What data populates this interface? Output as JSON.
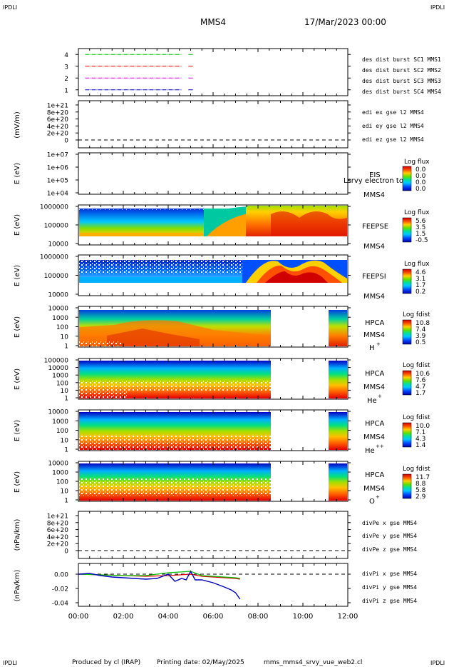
{
  "header": {
    "corner_tl": "IPDLI",
    "corner_tr": "IPDLI",
    "corner_bl": "IPDLI",
    "corner_br": "IPDLI",
    "spacecraft": "MMS4",
    "date": "17/Mar/2023 00:00"
  },
  "footer": {
    "produced": "Produced by cl (IRAP)",
    "printing": "Printing date: 02/May/2025",
    "script": "mms_mms4_srvy_vue_web2.cl"
  },
  "time_axis": {
    "ticks": [
      "00:00",
      "02:00",
      "04:00",
      "06:00",
      "08:00",
      "10:00",
      "12:00"
    ],
    "range_hours": [
      0,
      12
    ]
  },
  "colors": {
    "red": "#e00000",
    "green": "#00c000",
    "blue": "#0000c0",
    "magenta": "#d000d0"
  },
  "chart_data": [
    {
      "id": "burst",
      "type": "line",
      "ylim": [
        0.5,
        4.5
      ],
      "yticks": [
        "1",
        "2",
        "3",
        "4"
      ],
      "ylabel": "",
      "series": [
        {
          "name": "des dist burst SC1 MMS1",
          "level": 1,
          "color": "#0000c0",
          "x": [
            0.3,
            4.6,
            4.9,
            5.1
          ]
        },
        {
          "name": "des dist burst SC2 MMS2",
          "level": 2,
          "color": "#d000d0",
          "x": [
            0.3,
            4.6,
            4.9,
            5.1
          ]
        },
        {
          "name": "des dist burst SC3 MMS3",
          "level": 3,
          "color": "#e00000",
          "x": [
            0.3,
            4.6,
            4.9,
            5.1
          ]
        },
        {
          "name": "des dist burst SC4 MMS4",
          "level": 4,
          "color": "#00c000",
          "x": [
            0.3,
            4.6,
            4.9,
            5.1
          ]
        }
      ]
    },
    {
      "id": "edi",
      "type": "line",
      "ylabel": "(mV/m)",
      "yticks": [
        "0",
        "2e+20",
        "4e+20",
        "6e+20",
        "8e+20",
        "1e+21"
      ],
      "zero_dashed": true,
      "legend": [
        {
          "text": "edi ex gse l2 MMS4",
          "color": "#e00000"
        },
        {
          "text": "edi ey gse l2 MMS4",
          "color": "#00c000"
        },
        {
          "text": "edi ez gse l2 MMS4",
          "color": "#0000c0"
        }
      ]
    },
    {
      "id": "eis",
      "type": "heatmap",
      "ylabel": "E (eV)",
      "yticks": [
        "1e+04",
        "1e+05",
        "1e+06",
        "1e+07"
      ],
      "instrument": "EIS",
      "overlay": "Lsrvy electron to",
      "sc": "MMS4",
      "colorbar_title": "Log flux",
      "colorbar_ticks": [
        "0.0",
        "0.0",
        "0.0",
        "0.0"
      ]
    },
    {
      "id": "feepse",
      "type": "heatmap",
      "ylabel": "E (eV)",
      "yticks": [
        "10000",
        "100000",
        "1000000"
      ],
      "instrument": "FEEPSE",
      "sc": "MMS4",
      "colorbar_title": "Log flux",
      "colorbar_ticks": [
        "5.6",
        "3.5",
        "1.5",
        "-0.5"
      ]
    },
    {
      "id": "feepsi",
      "type": "heatmap",
      "ylabel": "E (eV)",
      "yticks": [
        "10000",
        "100000",
        "1000000"
      ],
      "instrument": "FEEPSI",
      "sc": "MMS4",
      "colorbar_title": "Log flux",
      "colorbar_ticks": [
        "4.6",
        "3.1",
        "1.7",
        "0.2"
      ]
    },
    {
      "id": "hpca_h",
      "type": "heatmap",
      "ylabel": "E (eV)",
      "yticks": [
        "1",
        "10",
        "100",
        "1000",
        "10000"
      ],
      "instrument": "HPCA",
      "sc": "MMS4",
      "species": "H",
      "species_sup": "+",
      "colorbar_title": "Log fdist",
      "colorbar_ticks": [
        "10.8",
        "7.4",
        "3.9",
        "0.5"
      ]
    },
    {
      "id": "hpca_he",
      "type": "heatmap",
      "ylabel": "E (eV)",
      "yticks": [
        "1",
        "10",
        "100",
        "1000",
        "10000",
        "100000"
      ],
      "instrument": "HPCA",
      "sc": "MMS4",
      "species": "He",
      "species_sup": "+",
      "colorbar_title": "Log fdist",
      "colorbar_ticks": [
        "10.6",
        "7.6",
        "4.7",
        "1.7"
      ]
    },
    {
      "id": "hpca_hepp",
      "type": "heatmap",
      "ylabel": "E (eV)",
      "yticks": [
        "1",
        "10",
        "100",
        "1000",
        "10000"
      ],
      "instrument": "HPCA",
      "sc": "MMS4",
      "species": "He",
      "species_sup": "++",
      "colorbar_title": "Log fdist",
      "colorbar_ticks": [
        "10.0",
        "7.1",
        "4.3",
        "1.4"
      ]
    },
    {
      "id": "hpca_o",
      "type": "heatmap",
      "ylabel": "E (eV)",
      "yticks": [
        "1",
        "10",
        "100",
        "1000",
        "10000"
      ],
      "instrument": "HPCA",
      "sc": "MMS4",
      "species": "O",
      "species_sup": "+",
      "colorbar_title": "Log fdist",
      "colorbar_ticks": [
        "11.7",
        "8.8",
        "5.8",
        "2.9"
      ]
    },
    {
      "id": "divpe",
      "type": "line",
      "ylabel": "(nPa/km)",
      "yticks": [
        "0",
        "2e+20",
        "4e+20",
        "6e+20",
        "8e+20",
        "1e+21"
      ],
      "zero_dashed": true,
      "legend": [
        {
          "text": "divPe x gse MMS4",
          "color": "#e00000"
        },
        {
          "text": "divPe y gse MMS4",
          "color": "#00c000"
        },
        {
          "text": "divPe z gse MMS4",
          "color": "#0000c0"
        }
      ]
    },
    {
      "id": "divpi",
      "type": "line",
      "ylabel": "(nPa/km)",
      "ylim": [
        -0.045,
        0.015
      ],
      "yticks": [
        "-0.04",
        "-0.02",
        "0.00"
      ],
      "zero_dashed": true,
      "legend": [
        {
          "text": "divPi x gse MMS4",
          "color": "#e00000"
        },
        {
          "text": "divPi y gse MMS4",
          "color": "#00c000"
        },
        {
          "text": "divPi z gse MMS4",
          "color": "#0000c0"
        }
      ],
      "series": [
        {
          "name": "x",
          "color": "#e00000",
          "x": [
            0,
            1,
            2,
            3,
            4,
            4.5,
            5,
            5.5,
            6,
            6.5,
            7,
            7.2
          ],
          "y": [
            0.0,
            -0.001,
            -0.002,
            -0.003,
            -0.002,
            -0.001,
            0.0,
            -0.003,
            -0.004,
            -0.005,
            -0.006,
            -0.007
          ]
        },
        {
          "name": "y",
          "color": "#00c000",
          "x": [
            0,
            1,
            2,
            3,
            4,
            4.5,
            5,
            5.5,
            6,
            6.5,
            7,
            7.2
          ],
          "y": [
            0.0,
            -0.001,
            -0.002,
            -0.002,
            0.002,
            0.003,
            0.004,
            -0.002,
            -0.003,
            -0.004,
            -0.005,
            -0.006
          ]
        },
        {
          "name": "z",
          "color": "#0000c0",
          "x": [
            0,
            0.5,
            1,
            1.5,
            2,
            2.5,
            3,
            3.5,
            4,
            4.3,
            4.6,
            4.8,
            5,
            5.2,
            5.5,
            6,
            6.5,
            6.8,
            7,
            7.2
          ],
          "y": [
            0.0,
            0.001,
            -0.002,
            -0.004,
            -0.005,
            -0.006,
            -0.007,
            -0.006,
            0.0,
            -0.01,
            -0.006,
            -0.008,
            0.004,
            -0.008,
            -0.008,
            -0.012,
            -0.018,
            -0.022,
            -0.026,
            -0.035
          ]
        }
      ]
    }
  ]
}
